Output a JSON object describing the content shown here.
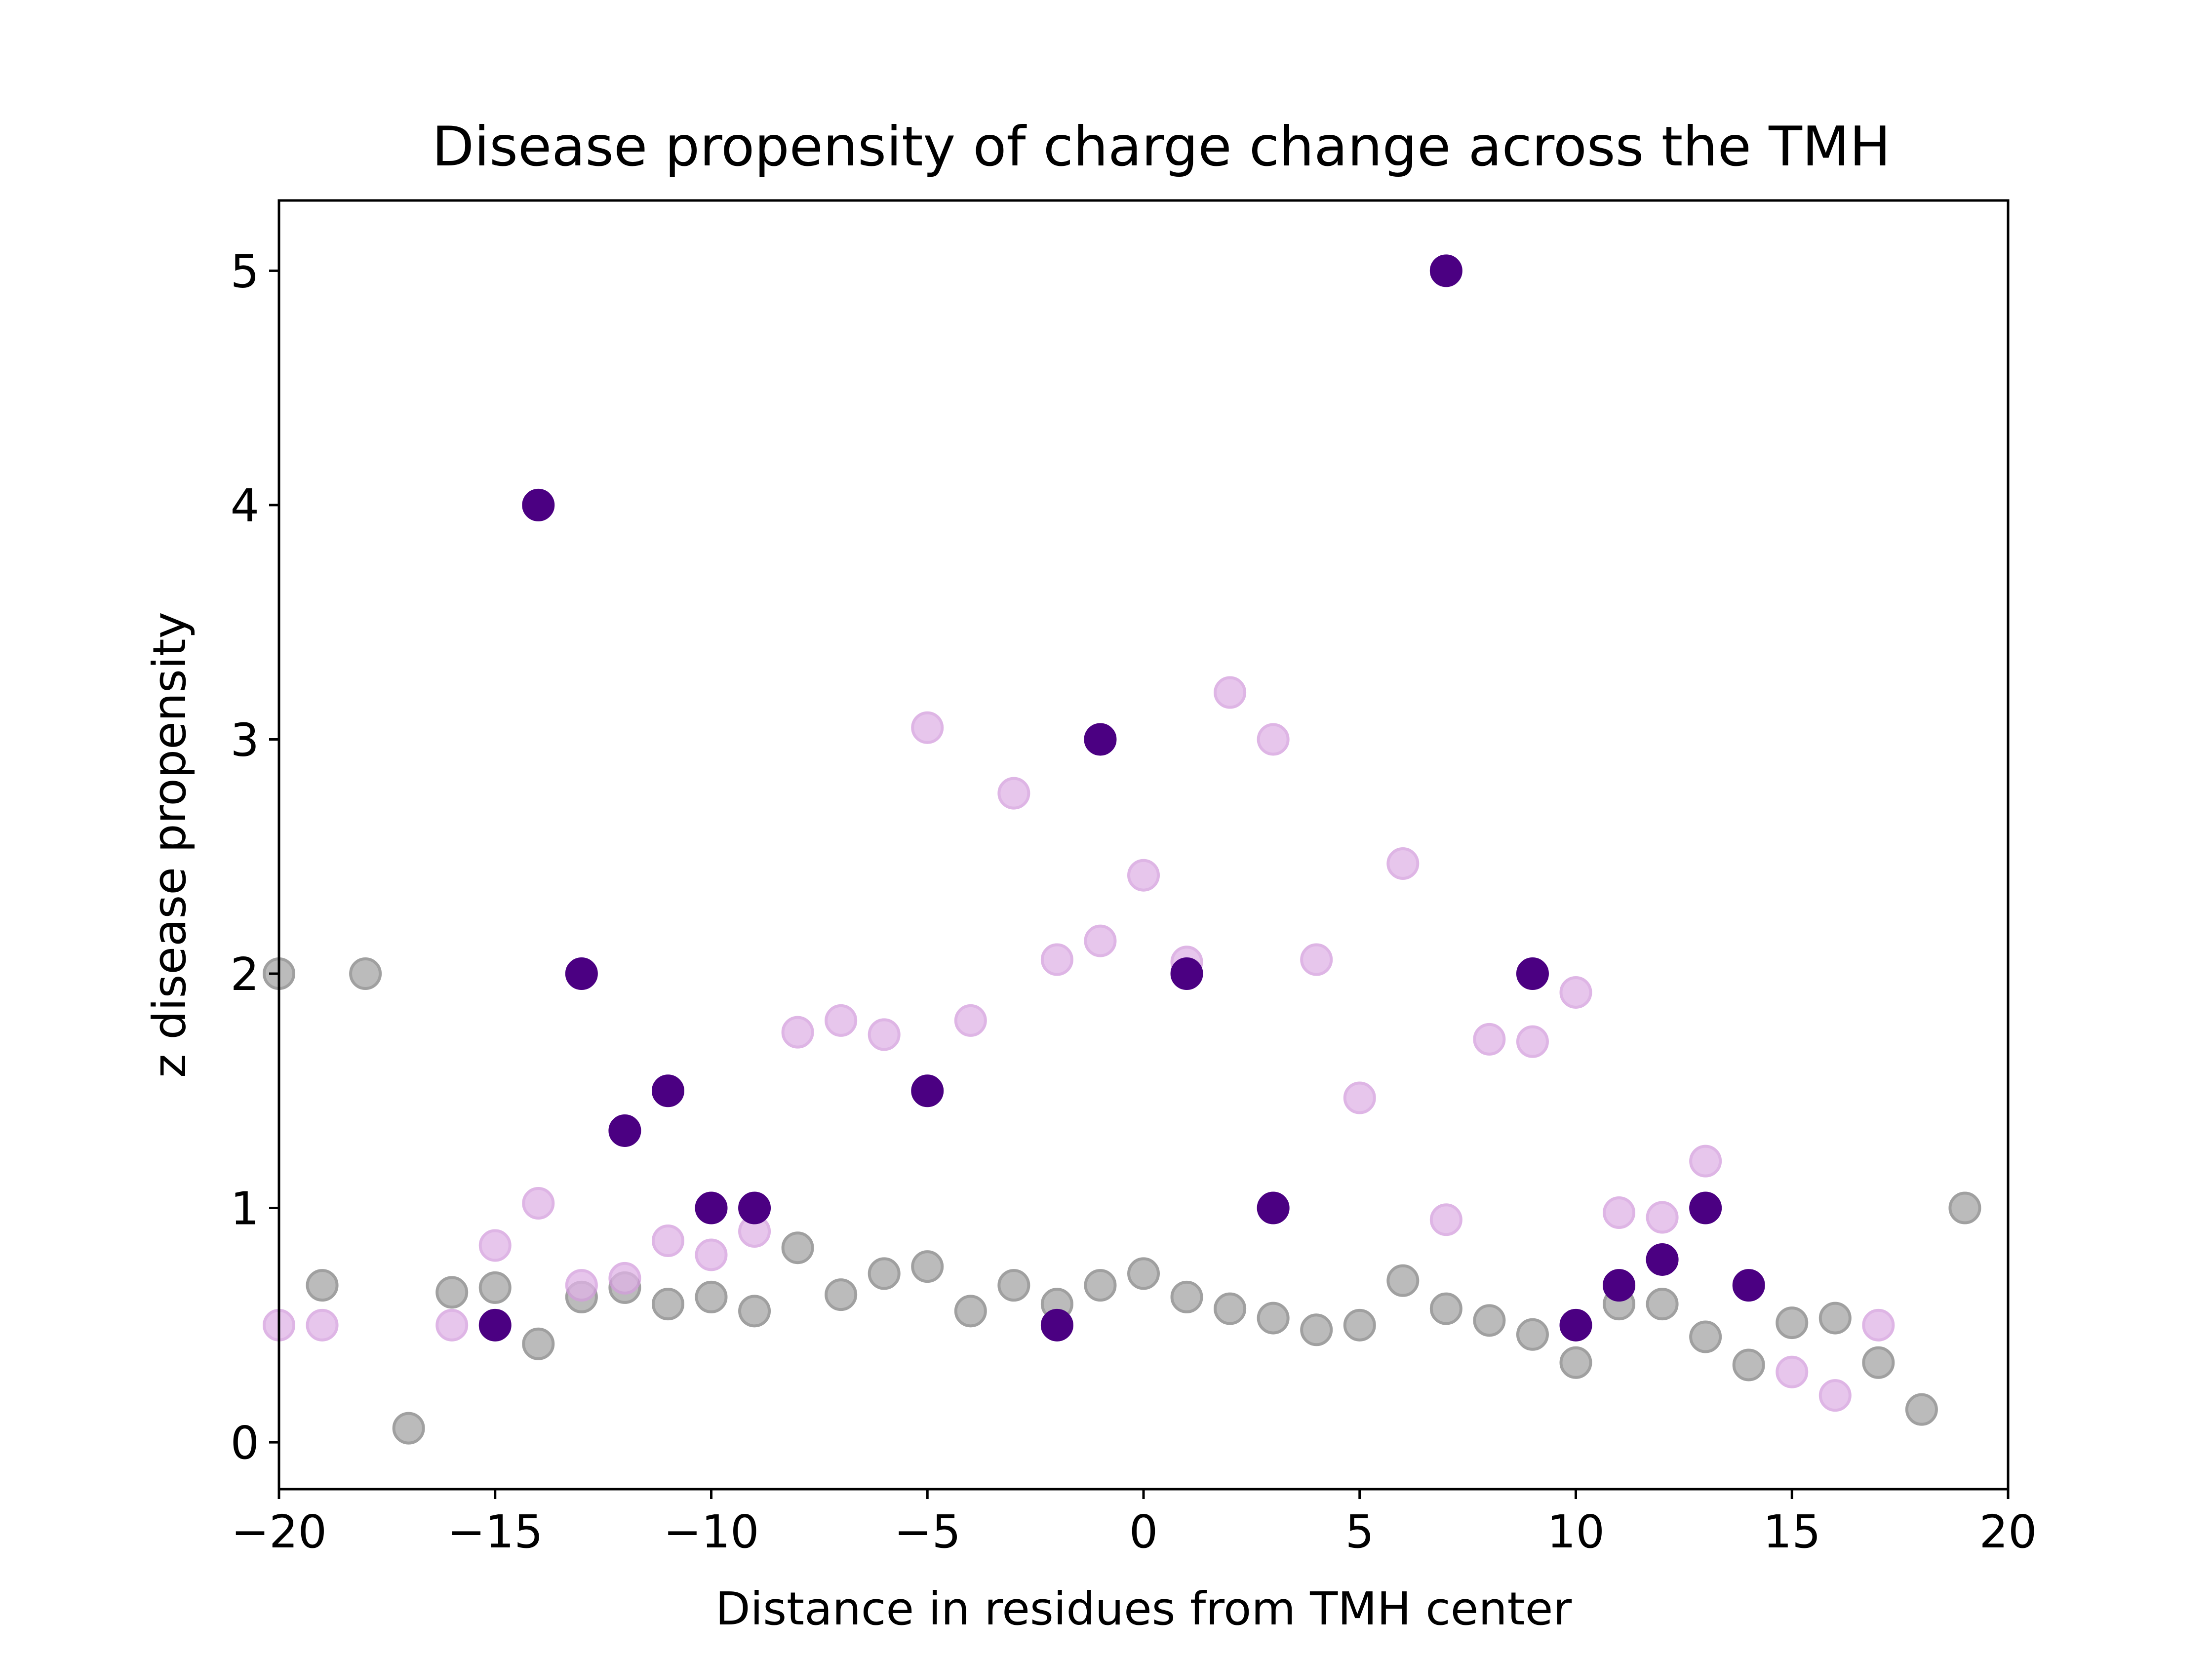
{
  "chart_data": {
    "type": "scatter",
    "title": "Disease propensity of charge change across the TMH",
    "xlabel": "Distance in residues from TMH center",
    "ylabel": "z disease propensity",
    "xlim": [
      -20,
      20
    ],
    "ylim": [
      -0.2,
      5.3
    ],
    "xticks": [
      -20,
      -15,
      -10,
      -5,
      0,
      5,
      10,
      15,
      20
    ],
    "xtick_labels": [
      "−20",
      "−15",
      "−10",
      "−5",
      "0",
      "5",
      "10",
      "15",
      "20"
    ],
    "yticks": [
      0,
      1,
      2,
      3,
      4,
      5
    ],
    "ytick_labels": [
      "0",
      "1",
      "2",
      "3",
      "4",
      "5"
    ],
    "grid": false,
    "series": [
      {
        "color": "#b0b0b0",
        "edge_color": "#909090",
        "opacity": 0.85,
        "points": [
          [
            -20,
            2.0
          ],
          [
            -19,
            0.67
          ],
          [
            -18,
            2.0
          ],
          [
            -17,
            0.06
          ],
          [
            -16,
            0.64
          ],
          [
            -15,
            0.66
          ],
          [
            -14,
            0.42
          ],
          [
            -13,
            0.62
          ],
          [
            -12,
            0.66
          ],
          [
            -11,
            0.59
          ],
          [
            -10,
            0.62
          ],
          [
            -9,
            0.56
          ],
          [
            -8,
            0.83
          ],
          [
            -7,
            0.63
          ],
          [
            -6,
            0.72
          ],
          [
            -5,
            0.75
          ],
          [
            -4,
            0.56
          ],
          [
            -3,
            0.67
          ],
          [
            -2,
            0.59
          ],
          [
            -1,
            0.67
          ],
          [
            0,
            0.72
          ],
          [
            1,
            0.62
          ],
          [
            2,
            0.57
          ],
          [
            3,
            0.53
          ],
          [
            4,
            0.48
          ],
          [
            5,
            0.5
          ],
          [
            6,
            0.69
          ],
          [
            7,
            0.57
          ],
          [
            8,
            0.52
          ],
          [
            9,
            0.46
          ],
          [
            10,
            0.34
          ],
          [
            11,
            0.59
          ],
          [
            12,
            0.59
          ],
          [
            13,
            0.45
          ],
          [
            14,
            0.33
          ],
          [
            15,
            0.51
          ],
          [
            16,
            0.53
          ],
          [
            17,
            0.34
          ],
          [
            18,
            0.14
          ],
          [
            19,
            1.0
          ]
        ]
      },
      {
        "color": "#dfb3e6",
        "edge_color": "#d39ddd",
        "opacity": 0.75,
        "points": [
          [
            -20,
            0.5
          ],
          [
            -19,
            0.5
          ],
          [
            -16,
            0.5
          ],
          [
            -15,
            0.84
          ],
          [
            -14,
            1.02
          ],
          [
            -13,
            0.67
          ],
          [
            -12,
            0.7
          ],
          [
            -11,
            0.86
          ],
          [
            -10,
            0.8
          ],
          [
            -9,
            0.9
          ],
          [
            -8,
            1.75
          ],
          [
            -7,
            1.8
          ],
          [
            -6,
            1.74
          ],
          [
            -5,
            3.05
          ],
          [
            -4,
            1.8
          ],
          [
            -3,
            2.77
          ],
          [
            -2,
            2.06
          ],
          [
            -1,
            2.14
          ],
          [
            0,
            2.42
          ],
          [
            1,
            2.05
          ],
          [
            2,
            3.2
          ],
          [
            3,
            3.0
          ],
          [
            4,
            2.06
          ],
          [
            5,
            1.47
          ],
          [
            6,
            2.47
          ],
          [
            7,
            0.95
          ],
          [
            8,
            1.72
          ],
          [
            9,
            1.71
          ],
          [
            10,
            1.92
          ],
          [
            11,
            0.98
          ],
          [
            12,
            0.96
          ],
          [
            13,
            1.2
          ],
          [
            15,
            0.3
          ],
          [
            16,
            0.2
          ],
          [
            17,
            0.5
          ]
        ]
      },
      {
        "color": "#4b0082",
        "edge_color": "#4b0082",
        "opacity": 1.0,
        "points": [
          [
            -15,
            0.5
          ],
          [
            -14,
            4.0
          ],
          [
            -13,
            2.0
          ],
          [
            -12,
            1.33
          ],
          [
            -11,
            1.5
          ],
          [
            -10,
            1.0
          ],
          [
            -9,
            1.0
          ],
          [
            -5,
            1.5
          ],
          [
            -2,
            0.5
          ],
          [
            -1,
            3.0
          ],
          [
            1,
            2.0
          ],
          [
            3,
            1.0
          ],
          [
            7,
            5.0
          ],
          [
            9,
            2.0
          ],
          [
            10,
            0.5
          ],
          [
            11,
            0.67
          ],
          [
            12,
            0.78
          ],
          [
            13,
            1.0
          ],
          [
            14,
            0.67
          ]
        ]
      }
    ]
  }
}
